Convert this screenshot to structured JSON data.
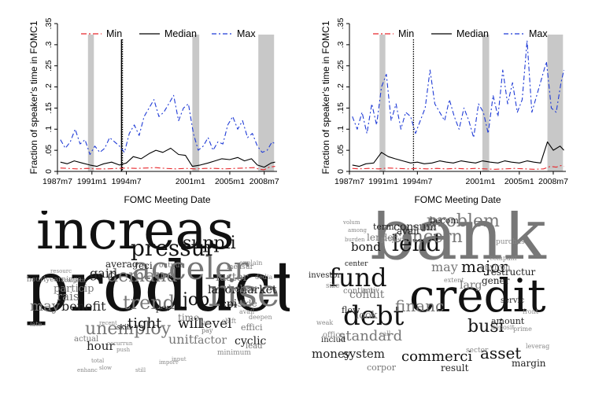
{
  "chart_data": [
    {
      "type": "line",
      "panel": "top-left",
      "xlabel": "FOMC Meeting Date",
      "ylabel": "Fraction of speaker's time in FOMC1",
      "ylim": [
        0,
        0.35
      ],
      "yticks": [
        "0",
        ".05",
        ".1",
        ".15",
        ".2",
        ".25",
        ".3",
        ".35"
      ],
      "xticks": [
        "1987m7",
        "1991m1",
        "1994m7",
        "2001m1",
        "2005m1",
        "2008m7"
      ],
      "xrange": [
        1987.5,
        2009.8
      ],
      "shaded_periods": [
        [
          1990.6,
          1991.2
        ],
        [
          2001.2,
          2001.9
        ],
        [
          2007.9,
          2009.5
        ]
      ],
      "vertical_lines": [
        {
          "x": 1994.0,
          "style": "solid"
        },
        {
          "x": 1994.1,
          "style": "dotted"
        }
      ],
      "legend": [
        "Min",
        "Median",
        "Max"
      ],
      "series": [
        {
          "name": "Min",
          "color": "#e8262b",
          "dash": "7,3,2,3",
          "x": [
            1987.8,
            1988.5,
            1989.5,
            1990.5,
            1991.5,
            1992.5,
            1993.5,
            1994.5,
            1995.5,
            1996.5,
            1997.5,
            1998.5,
            1999.5,
            2000.5,
            2001.5,
            2002.5,
            2003.5,
            2004.5,
            2005.5,
            2006.5,
            2007.5,
            2008.0,
            2008.5,
            2009.0,
            2009.6
          ],
          "values": [
            0.008,
            0.007,
            0.006,
            0.007,
            0.006,
            0.006,
            0.007,
            0.008,
            0.007,
            0.008,
            0.009,
            0.007,
            0.006,
            0.007,
            0.006,
            0.007,
            0.007,
            0.006,
            0.007,
            0.008,
            0.009,
            0.005,
            0.004,
            0.01,
            0.012
          ]
        },
        {
          "name": "Median",
          "color": "#000000",
          "dash": "",
          "x": [
            1987.8,
            1988.5,
            1989.2,
            1990.0,
            1990.8,
            1991.5,
            1992.2,
            1993.0,
            1993.8,
            1994.5,
            1995.2,
            1996.0,
            1996.8,
            1997.5,
            1998.2,
            1999.0,
            1999.8,
            2000.5,
            2001.2,
            2002.0,
            2002.8,
            2003.5,
            2004.2,
            2005.0,
            2005.8,
            2006.5,
            2007.2,
            2007.8,
            2008.5,
            2009.2,
            2009.6
          ],
          "values": [
            0.022,
            0.018,
            0.025,
            0.02,
            0.015,
            0.012,
            0.018,
            0.022,
            0.015,
            0.02,
            0.035,
            0.03,
            0.042,
            0.05,
            0.045,
            0.055,
            0.04,
            0.038,
            0.012,
            0.015,
            0.02,
            0.025,
            0.03,
            0.028,
            0.033,
            0.025,
            0.03,
            0.015,
            0.01,
            0.02,
            0.022
          ]
        },
        {
          "name": "Max",
          "color": "#1f3bd6",
          "dash": "6,3,2,3",
          "x": [
            1987.8,
            1988.3,
            1988.8,
            1989.3,
            1989.8,
            1990.3,
            1990.8,
            1991.3,
            1991.8,
            1992.3,
            1992.8,
            1993.3,
            1993.8,
            1994.3,
            1994.8,
            1995.3,
            1995.8,
            1996.3,
            1996.8,
            1997.3,
            1997.8,
            1998.3,
            1998.8,
            1999.3,
            1999.8,
            2000.3,
            2000.8,
            2001.3,
            2001.8,
            2002.3,
            2002.8,
            2003.3,
            2003.8,
            2004.3,
            2004.8,
            2005.3,
            2005.8,
            2006.3,
            2006.8,
            2007.3,
            2007.8,
            2008.3,
            2008.8,
            2009.3,
            2009.6
          ],
          "values": [
            0.075,
            0.055,
            0.07,
            0.1,
            0.065,
            0.075,
            0.04,
            0.06,
            0.045,
            0.055,
            0.08,
            0.07,
            0.06,
            0.045,
            0.09,
            0.11,
            0.085,
            0.13,
            0.15,
            0.17,
            0.13,
            0.14,
            0.16,
            0.18,
            0.12,
            0.15,
            0.16,
            0.09,
            0.05,
            0.06,
            0.08,
            0.05,
            0.07,
            0.065,
            0.11,
            0.13,
            0.1,
            0.12,
            0.08,
            0.09,
            0.06,
            0.045,
            0.05,
            0.07,
            0.065
          ]
        }
      ]
    },
    {
      "type": "line",
      "panel": "top-right",
      "xlabel": "FOMC Meeting Date",
      "ylabel": "Fraction of speaker's time in FOMC1",
      "ylim": [
        0,
        0.35
      ],
      "yticks": [
        "0",
        ".05",
        ".1",
        ".15",
        ".2",
        ".25",
        ".3",
        ".35"
      ],
      "xticks": [
        "1987m7",
        "1991m1",
        "1994m7",
        "2001m1",
        "2005m1",
        "2008m7"
      ],
      "xrange": [
        1987.5,
        2009.8
      ],
      "shaded_periods": [
        [
          1990.6,
          1991.2
        ],
        [
          2001.2,
          2001.9
        ],
        [
          2007.9,
          2009.5
        ]
      ],
      "vertical_lines": [
        {
          "x": 1994.1,
          "style": "dotted"
        }
      ],
      "legend": [
        "Min",
        "Median",
        "Max"
      ],
      "series": [
        {
          "name": "Min",
          "color": "#e8262b",
          "dash": "7,3,2,3",
          "x": [
            1987.8,
            1988.5,
            1989.5,
            1990.5,
            1991.5,
            1992.5,
            1993.5,
            1994.5,
            1995.5,
            1996.5,
            1997.5,
            1998.5,
            1999.5,
            2000.5,
            2001.5,
            2002.5,
            2003.5,
            2004.5,
            2005.5,
            2006.5,
            2007.5,
            2008.2,
            2008.8,
            2009.3,
            2009.6
          ],
          "values": [
            0.007,
            0.006,
            0.007,
            0.006,
            0.008,
            0.007,
            0.006,
            0.007,
            0.006,
            0.007,
            0.006,
            0.007,
            0.006,
            0.007,
            0.006,
            0.005,
            0.006,
            0.007,
            0.006,
            0.005,
            0.006,
            0.012,
            0.01,
            0.014,
            0.012
          ]
        },
        {
          "name": "Median",
          "color": "#000000",
          "dash": "",
          "x": [
            1987.8,
            1988.5,
            1989.2,
            1990.0,
            1990.8,
            1991.5,
            1992.2,
            1993.0,
            1993.8,
            1994.5,
            1995.2,
            1996.0,
            1996.8,
            1997.5,
            1998.2,
            1999.0,
            1999.8,
            2000.5,
            2001.2,
            2002.0,
            2002.8,
            2003.5,
            2004.2,
            2005.0,
            2005.8,
            2006.5,
            2007.2,
            2007.9,
            2008.5,
            2009.2,
            2009.6
          ],
          "values": [
            0.015,
            0.012,
            0.018,
            0.02,
            0.045,
            0.035,
            0.03,
            0.025,
            0.02,
            0.022,
            0.018,
            0.02,
            0.025,
            0.022,
            0.02,
            0.025,
            0.022,
            0.02,
            0.025,
            0.022,
            0.02,
            0.025,
            0.022,
            0.02,
            0.025,
            0.022,
            0.02,
            0.07,
            0.05,
            0.06,
            0.05
          ]
        },
        {
          "name": "Max",
          "color": "#1f3bd6",
          "dash": "6,3,2,3",
          "x": [
            1987.8,
            1988.3,
            1988.8,
            1989.3,
            1989.8,
            1990.3,
            1990.8,
            1991.3,
            1991.8,
            1992.3,
            1992.8,
            1993.3,
            1993.8,
            1994.3,
            1994.8,
            1995.3,
            1995.8,
            1996.3,
            1996.8,
            1997.3,
            1997.8,
            1998.3,
            1998.8,
            1999.3,
            1999.8,
            2000.3,
            2000.8,
            2001.3,
            2001.8,
            2002.3,
            2002.8,
            2003.3,
            2003.8,
            2004.3,
            2004.8,
            2005.3,
            2005.8,
            2006.3,
            2006.8,
            2007.3,
            2007.8,
            2008.3,
            2008.8,
            2009.3,
            2009.6
          ],
          "values": [
            0.13,
            0.1,
            0.14,
            0.09,
            0.16,
            0.11,
            0.2,
            0.23,
            0.12,
            0.16,
            0.1,
            0.14,
            0.13,
            0.09,
            0.12,
            0.15,
            0.24,
            0.16,
            0.14,
            0.12,
            0.17,
            0.13,
            0.1,
            0.15,
            0.12,
            0.08,
            0.16,
            0.14,
            0.09,
            0.18,
            0.13,
            0.24,
            0.16,
            0.21,
            0.14,
            0.17,
            0.31,
            0.14,
            0.18,
            0.22,
            0.26,
            0.15,
            0.14,
            0.21,
            0.24
          ]
        }
      ]
    }
  ],
  "word_clouds": [
    {
      "words": [
        {
          "t": "product",
          "c": "#111111"
        },
        {
          "t": "increas",
          "c": "#111111"
        },
        {
          "t": "acceler",
          "c": "#777777"
        },
        {
          "t": "rise",
          "c": "#777777"
        },
        {
          "t": "pressur",
          "c": "#111111"
        },
        {
          "t": "trend",
          "c": "#777777"
        },
        {
          "t": "demand",
          "c": "#777777"
        },
        {
          "t": "unemploy",
          "c": "#777777"
        },
        {
          "t": "labormarket",
          "c": "#111111"
        },
        {
          "t": "suppli",
          "c": "#111111"
        },
        {
          "t": "job",
          "c": "#111111"
        },
        {
          "t": "benefit",
          "c": "#222222"
        },
        {
          "t": "may",
          "c": "#777777"
        },
        {
          "t": "tight",
          "c": "#111111"
        },
        {
          "t": "will",
          "c": "#111111"
        },
        {
          "t": "level",
          "c": "#222222"
        },
        {
          "t": "faster",
          "c": "#777777"
        },
        {
          "t": "unit",
          "c": "#777777"
        },
        {
          "t": "factor",
          "c": "#777777"
        },
        {
          "t": "hour",
          "c": "#222222"
        },
        {
          "t": "cyclic",
          "c": "#222222"
        },
        {
          "t": "cpi",
          "c": "#111111"
        },
        {
          "t": "rais",
          "c": "#777777"
        },
        {
          "t": "gain",
          "c": "#222222"
        },
        {
          "t": "particip",
          "c": "#777777"
        },
        {
          "t": "averag",
          "c": "#222222"
        },
        {
          "t": "eci",
          "c": "#222222"
        },
        {
          "t": "believ",
          "c": "#777777"
        },
        {
          "t": "output",
          "c": "#777777"
        },
        {
          "t": "side",
          "c": "#777777"
        },
        {
          "t": "measur",
          "c": "#777777"
        },
        {
          "t": "time",
          "c": "#777777"
        },
        {
          "t": "effici",
          "c": "#777777"
        },
        {
          "t": "lead",
          "c": "#777777"
        },
        {
          "t": "per",
          "c": "#222222"
        },
        {
          "t": "minimum",
          "c": "#888888"
        },
        {
          "t": "actual",
          "c": "#777777"
        },
        {
          "t": "skill",
          "c": "#222222"
        },
        {
          "t": "ye",
          "c": "#777777"
        },
        {
          "t": "pay",
          "c": "#777777"
        },
        {
          "t": "hourlyearnings",
          "c": "#777777"
        },
        {
          "t": "competit",
          "c": "#888888"
        },
        {
          "t": "resourc",
          "c": "#888888"
        },
        {
          "t": "forc",
          "c": "#888888"
        },
        {
          "t": "explain",
          "c": "#888888"
        },
        {
          "t": "dedia",
          "c": "#888888"
        },
        {
          "t": "late",
          "c": "#888888"
        },
        {
          "t": "shift",
          "c": "#888888"
        },
        {
          "t": "deepen",
          "c": "#888888"
        },
        {
          "t": "occur",
          "c": "#888888"
        },
        {
          "t": "run",
          "c": "#888888"
        },
        {
          "t": "push",
          "c": "#888888"
        },
        {
          "t": "total",
          "c": "#888888"
        },
        {
          "t": "input",
          "c": "#888888"
        },
        {
          "t": "enhanc",
          "c": "#888888"
        },
        {
          "t": "slow",
          "c": "#888888"
        },
        {
          "t": "recent",
          "c": "#888888"
        },
        {
          "t": "still",
          "c": "#888888"
        },
        {
          "t": "import",
          "c": "#888888"
        },
        {
          "t": "avail",
          "c": "#888888"
        }
      ]
    },
    {
      "words": [
        {
          "t": "bank",
          "c": "#777777"
        },
        {
          "t": "credit",
          "c": "#111111"
        },
        {
          "t": "lend",
          "c": "#111111"
        },
        {
          "t": "debt",
          "c": "#111111"
        },
        {
          "t": "fund",
          "c": "#111111"
        },
        {
          "t": "concern",
          "c": "#777777"
        },
        {
          "t": "problem",
          "c": "#777777"
        },
        {
          "t": "financ",
          "c": "#777777"
        },
        {
          "t": "commerci",
          "c": "#111111"
        },
        {
          "t": "asset",
          "c": "#111111"
        },
        {
          "t": "busi",
          "c": "#111111"
        },
        {
          "t": "standard",
          "c": "#777777"
        },
        {
          "t": "system",
          "c": "#222222"
        },
        {
          "t": "money",
          "c": "#222222"
        },
        {
          "t": "condit",
          "c": "#777777"
        },
        {
          "t": "major",
          "c": "#111111"
        },
        {
          "t": "may",
          "c": "#777777"
        },
        {
          "t": "consum",
          "c": "#222222"
        },
        {
          "t": "bond",
          "c": "#111111"
        },
        {
          "t": "avail",
          "c": "#222222"
        },
        {
          "t": "larg",
          "c": "#777777"
        },
        {
          "t": "look",
          "c": "#777777"
        },
        {
          "t": "restructur",
          "c": "#222222"
        },
        {
          "t": "gener",
          "c": "#222222"
        },
        {
          "t": "lender",
          "c": "#777777"
        },
        {
          "t": "term",
          "c": "#222222"
        },
        {
          "t": "becom",
          "c": "#222222"
        },
        {
          "t": "sourc",
          "c": "#777777"
        },
        {
          "t": "margin",
          "c": "#222222"
        },
        {
          "t": "result",
          "c": "#222222"
        },
        {
          "t": "corpor",
          "c": "#777777"
        },
        {
          "t": "flow",
          "c": "#222222"
        },
        {
          "t": "includ",
          "c": "#222222"
        },
        {
          "t": "continu",
          "c": "#777777"
        },
        {
          "t": "amount",
          "c": "#222222"
        },
        {
          "t": "investor",
          "c": "#222222"
        },
        {
          "t": "center",
          "c": "#222222"
        },
        {
          "t": "servic",
          "c": "#222222"
        },
        {
          "t": "environ",
          "c": "#777777"
        },
        {
          "t": "compani",
          "c": "#888888"
        },
        {
          "t": "purchas",
          "c": "#888888"
        },
        {
          "t": "deposit",
          "c": "#888888"
        },
        {
          "t": "extent",
          "c": "#888888"
        },
        {
          "t": "front",
          "c": "#888888"
        },
        {
          "t": "activ",
          "c": "#888888"
        },
        {
          "t": "prime",
          "c": "#888888"
        },
        {
          "t": "size",
          "c": "#888888"
        },
        {
          "t": "office",
          "c": "#888888"
        },
        {
          "t": "call",
          "c": "#888888"
        },
        {
          "t": "sector",
          "c": "#888888"
        },
        {
          "t": "weak",
          "c": "#888888"
        },
        {
          "t": "leverag",
          "c": "#888888"
        },
        {
          "t": "volum",
          "c": "#888888"
        },
        {
          "t": "among",
          "c": "#888888"
        },
        {
          "t": "burden",
          "c": "#888888"
        },
        {
          "t": "properti",
          "c": "#888888"
        }
      ]
    }
  ]
}
